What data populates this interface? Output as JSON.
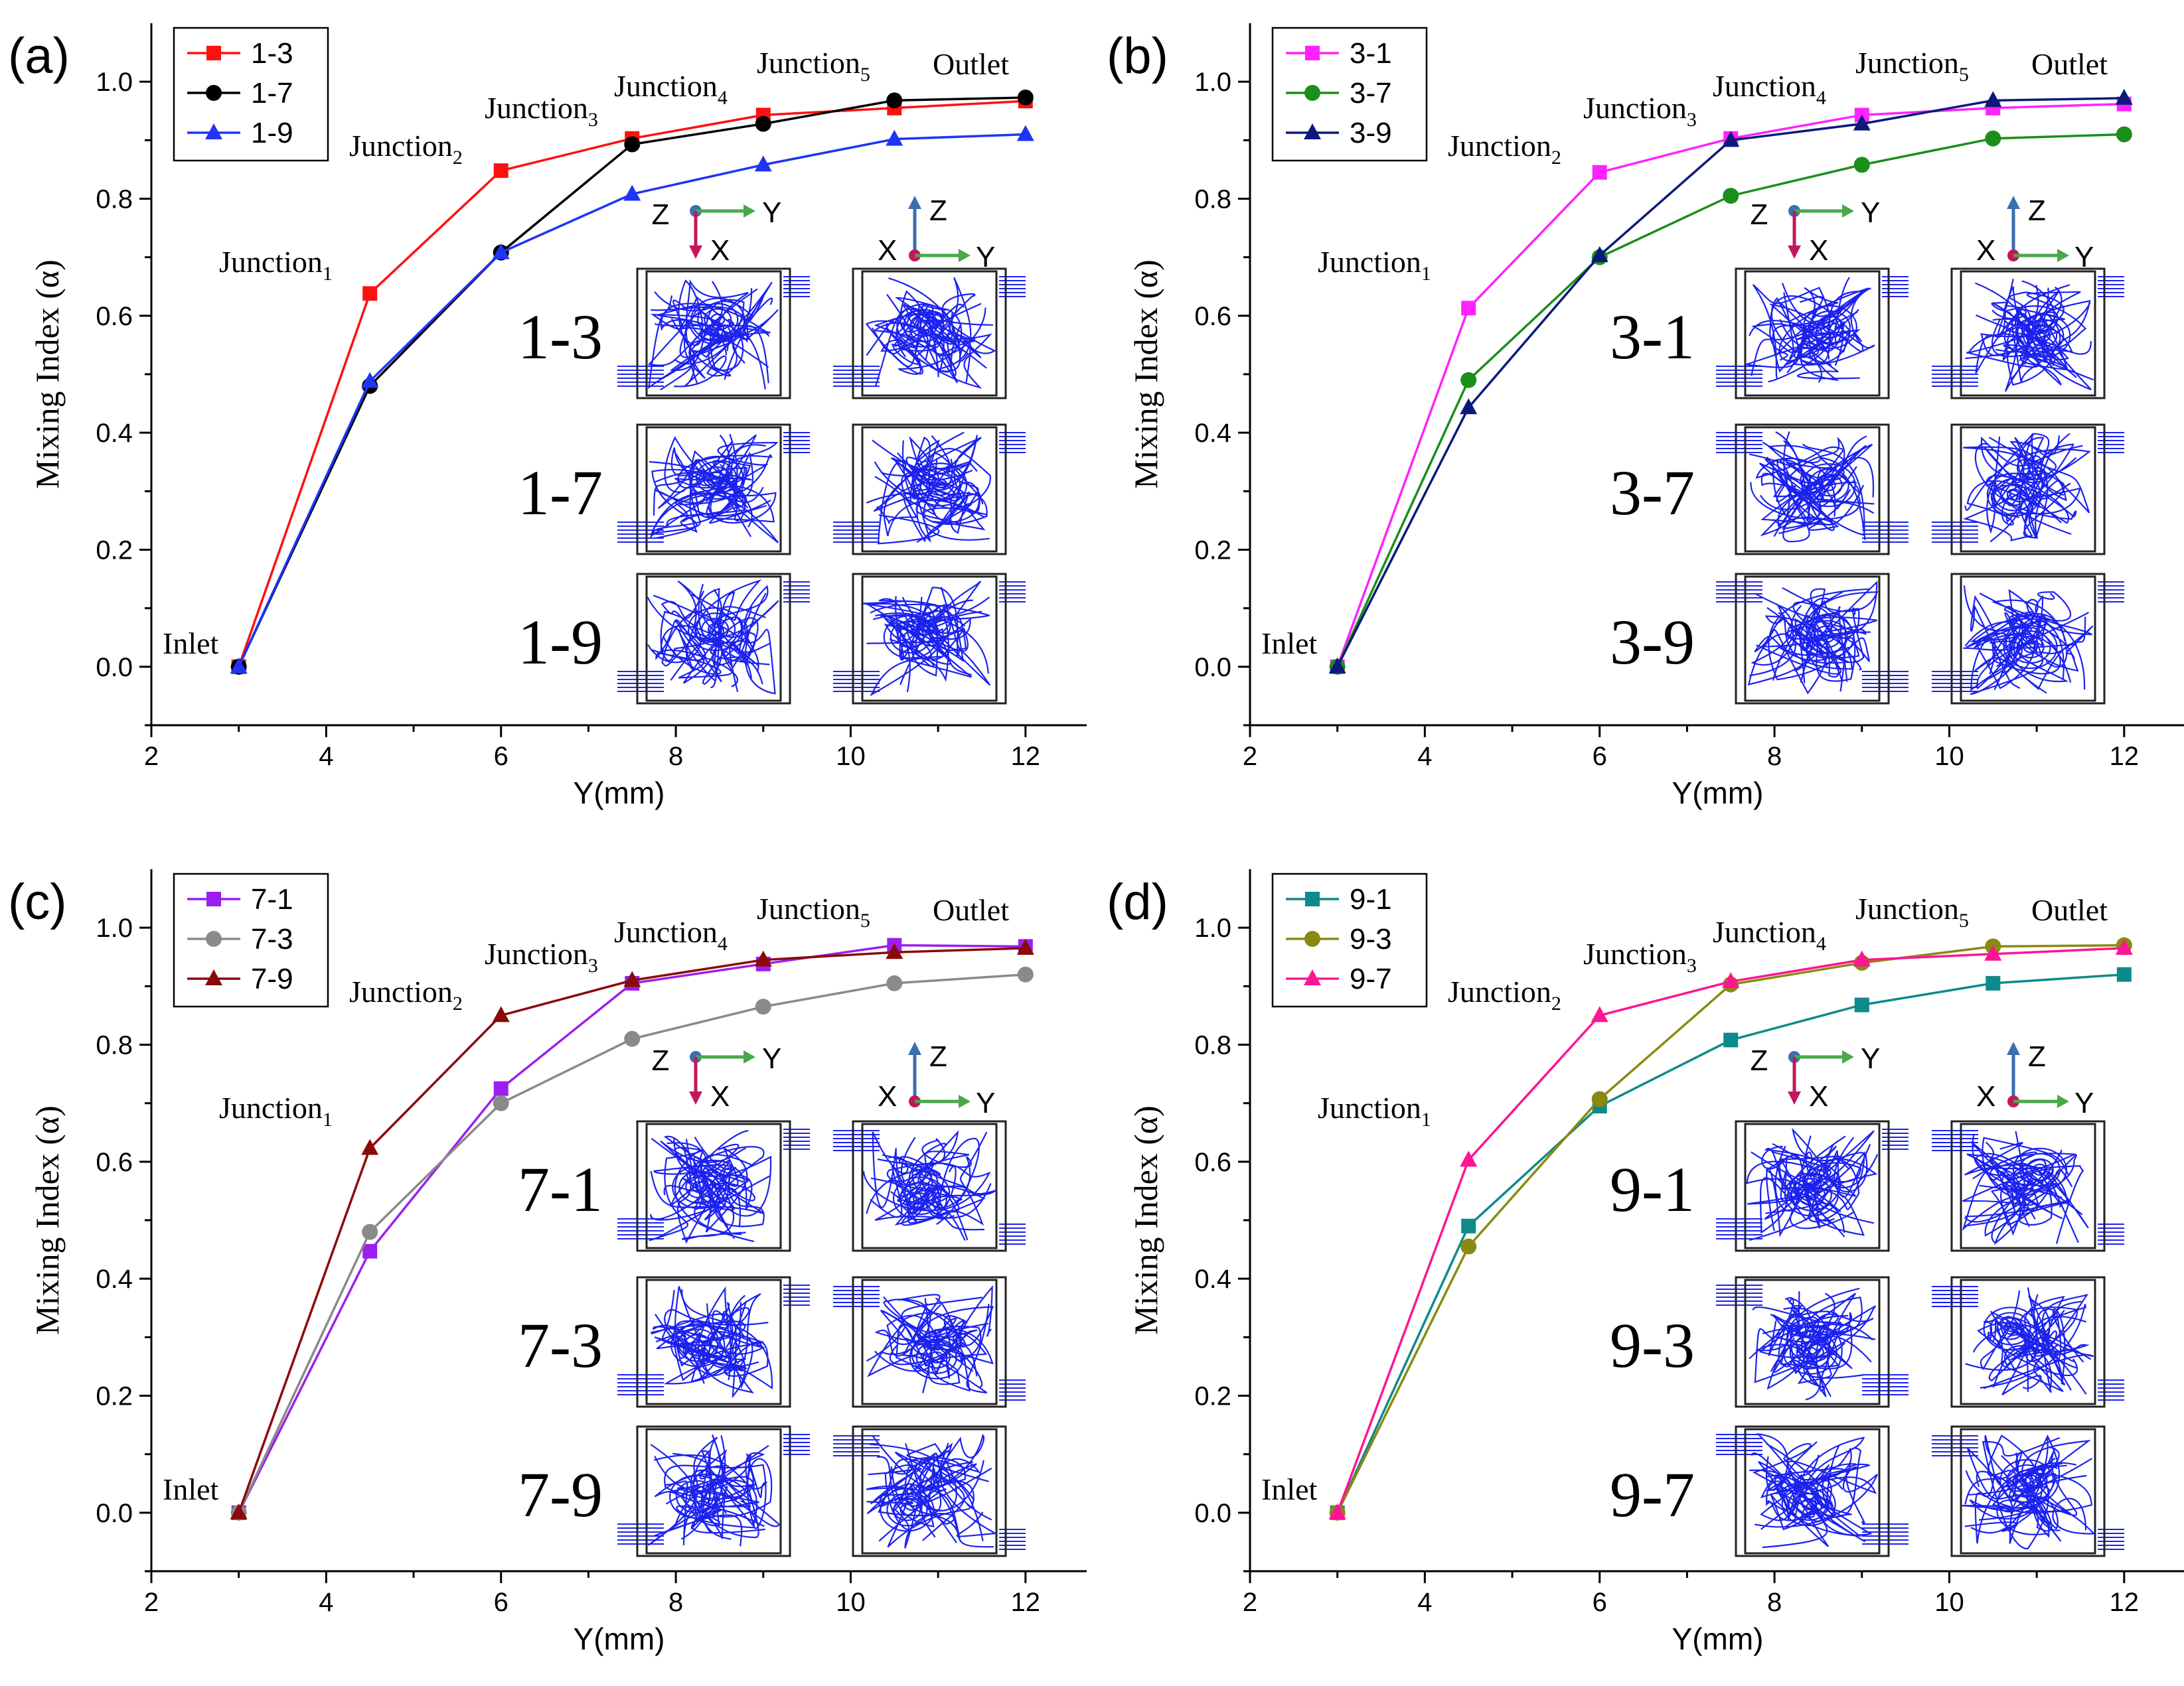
{
  "chart_data": [
    {
      "type": "line",
      "panel": "(a)",
      "x": [
        3,
        4.5,
        6,
        7.5,
        9,
        10.5,
        12
      ],
      "series": [
        {
          "name": "1-3",
          "color": "#ff1010",
          "marker": "square",
          "values": [
            0,
            0.638,
            0.848,
            0.903,
            0.943,
            0.955,
            0.967
          ]
        },
        {
          "name": "1-7",
          "color": "#000000",
          "marker": "circle",
          "values": [
            0,
            0.48,
            0.708,
            0.893,
            0.928,
            0.968,
            0.973
          ]
        },
        {
          "name": "1-9",
          "color": "#1f34f5",
          "marker": "triangle",
          "values": [
            0,
            0.488,
            0.708,
            0.808,
            0.858,
            0.902,
            0.91
          ]
        }
      ],
      "annotations": [
        {
          "name": "Inlet",
          "sub": ""
        },
        {
          "name": "Junction",
          "sub": "1"
        },
        {
          "name": "Junction",
          "sub": "2"
        },
        {
          "name": "Junction",
          "sub": "3"
        },
        {
          "name": "Junction",
          "sub": "4"
        },
        {
          "name": "Junction",
          "sub": "5"
        },
        {
          "name": "Outlet",
          "sub": ""
        }
      ],
      "inset_labels": [
        "1-3",
        "1-7",
        "1-9"
      ],
      "coord_top": [
        "Z",
        "Y",
        "X"
      ],
      "coord_side": [
        "Z",
        "X",
        "Y"
      ],
      "xlabel": "Y(mm)",
      "ylabel": "Mixing Index (α)",
      "xlim": [
        2,
        12.7
      ],
      "ylim": [
        -0.1,
        1.1
      ],
      "xticks": [
        "2",
        "4",
        "6",
        "8",
        "10",
        "12"
      ],
      "yticks": [
        "0.0",
        "0.2",
        "0.4",
        "0.6",
        "0.8",
        "1.0"
      ]
    },
    {
      "type": "line",
      "panel": "(b)",
      "x": [
        3,
        4.5,
        6,
        7.5,
        9,
        10.5,
        12
      ],
      "series": [
        {
          "name": "3-1",
          "color": "#ff22ff",
          "marker": "square",
          "values": [
            0,
            0.613,
            0.845,
            0.903,
            0.943,
            0.955,
            0.962
          ]
        },
        {
          "name": "3-7",
          "color": "#1a8f1a",
          "marker": "circle",
          "values": [
            0,
            0.49,
            0.7,
            0.805,
            0.858,
            0.903,
            0.91
          ]
        },
        {
          "name": "3-9",
          "color": "#0b1a7a",
          "marker": "triangle",
          "values": [
            0,
            0.443,
            0.703,
            0.9,
            0.928,
            0.968,
            0.972
          ]
        }
      ],
      "annotations": [
        {
          "name": "Inlet",
          "sub": ""
        },
        {
          "name": "Junction",
          "sub": "1"
        },
        {
          "name": "Junction",
          "sub": "2"
        },
        {
          "name": "Junction",
          "sub": "3"
        },
        {
          "name": "Junction",
          "sub": "4"
        },
        {
          "name": "Junction",
          "sub": "5"
        },
        {
          "name": "Outlet",
          "sub": ""
        }
      ],
      "inset_labels": [
        "3-1",
        "3-7",
        "3-9"
      ],
      "coord_top": [
        "Z",
        "Y",
        "X"
      ],
      "coord_side": [
        "Z",
        "X",
        "Y"
      ],
      "xlabel": "Y(mm)",
      "ylabel": "Mixing Index (α)",
      "xlim": [
        2,
        12.7
      ],
      "ylim": [
        -0.1,
        1.1
      ],
      "xticks": [
        "2",
        "4",
        "6",
        "8",
        "10",
        "12"
      ],
      "yticks": [
        "0.0",
        "0.2",
        "0.4",
        "0.6",
        "0.8",
        "1.0"
      ]
    },
    {
      "type": "line",
      "panel": "(c)",
      "x": [
        3,
        4.5,
        6,
        7.5,
        9,
        10.5,
        12
      ],
      "series": [
        {
          "name": "7-1",
          "color": "#9b1ff0",
          "marker": "square",
          "values": [
            0,
            0.447,
            0.725,
            0.905,
            0.938,
            0.97,
            0.968
          ]
        },
        {
          "name": "7-3",
          "color": "#8a8a8a",
          "marker": "circle",
          "values": [
            0,
            0.48,
            0.7,
            0.81,
            0.865,
            0.905,
            0.92
          ]
        },
        {
          "name": "7-9",
          "color": "#8a0a0a",
          "marker": "triangle",
          "values": [
            0,
            0.623,
            0.85,
            0.91,
            0.945,
            0.958,
            0.965
          ]
        }
      ],
      "annotations": [
        {
          "name": "Inlet",
          "sub": ""
        },
        {
          "name": "Junction",
          "sub": "1"
        },
        {
          "name": "Junction",
          "sub": "2"
        },
        {
          "name": "Junction",
          "sub": "3"
        },
        {
          "name": "Junction",
          "sub": "4"
        },
        {
          "name": "Junction",
          "sub": "5"
        },
        {
          "name": "Outlet",
          "sub": ""
        }
      ],
      "inset_labels": [
        "7-1",
        "7-3",
        "7-9"
      ],
      "coord_top": [
        "Z",
        "Y",
        "X"
      ],
      "coord_side": [
        "Z",
        "X",
        "Y"
      ],
      "xlabel": "Y(mm)",
      "ylabel": "Mixing Index (α)",
      "xlim": [
        2,
        12.7
      ],
      "ylim": [
        -0.1,
        1.1
      ],
      "xticks": [
        "2",
        "4",
        "6",
        "8",
        "10",
        "12"
      ],
      "yticks": [
        "0.0",
        "0.2",
        "0.4",
        "0.6",
        "0.8",
        "1.0"
      ]
    },
    {
      "type": "line",
      "panel": "(d)",
      "x": [
        3,
        4.5,
        6,
        7.5,
        9,
        10.5,
        12
      ],
      "series": [
        {
          "name": "9-1",
          "color": "#0f8a8a",
          "marker": "square",
          "values": [
            0,
            0.49,
            0.695,
            0.808,
            0.868,
            0.905,
            0.92
          ]
        },
        {
          "name": "9-3",
          "color": "#8a8a10",
          "marker": "circle",
          "values": [
            0,
            0.455,
            0.707,
            0.903,
            0.94,
            0.968,
            0.97
          ]
        },
        {
          "name": "9-7",
          "color": "#ff1493",
          "marker": "triangle",
          "values": [
            0,
            0.603,
            0.85,
            0.908,
            0.945,
            0.955,
            0.965
          ]
        }
      ],
      "annotations": [
        {
          "name": "Inlet",
          "sub": ""
        },
        {
          "name": "Junction",
          "sub": "1"
        },
        {
          "name": "Junction",
          "sub": "2"
        },
        {
          "name": "Junction",
          "sub": "3"
        },
        {
          "name": "Junction",
          "sub": "4"
        },
        {
          "name": "Junction",
          "sub": "5"
        },
        {
          "name": "Outlet",
          "sub": ""
        }
      ],
      "inset_labels": [
        "9-1",
        "9-3",
        "9-7"
      ],
      "coord_top": [
        "Z",
        "Y",
        "X"
      ],
      "coord_side": [
        "Z",
        "X",
        "Y"
      ],
      "xlabel": "Y(mm)",
      "ylabel": "Mixing Index (α)",
      "xlim": [
        2,
        12.7
      ],
      "ylim": [
        -0.1,
        1.1
      ],
      "xticks": [
        "2",
        "4",
        "6",
        "8",
        "10",
        "12"
      ],
      "yticks": [
        "0.0",
        "0.2",
        "0.4",
        "0.6",
        "0.8",
        "1.0"
      ]
    }
  ]
}
